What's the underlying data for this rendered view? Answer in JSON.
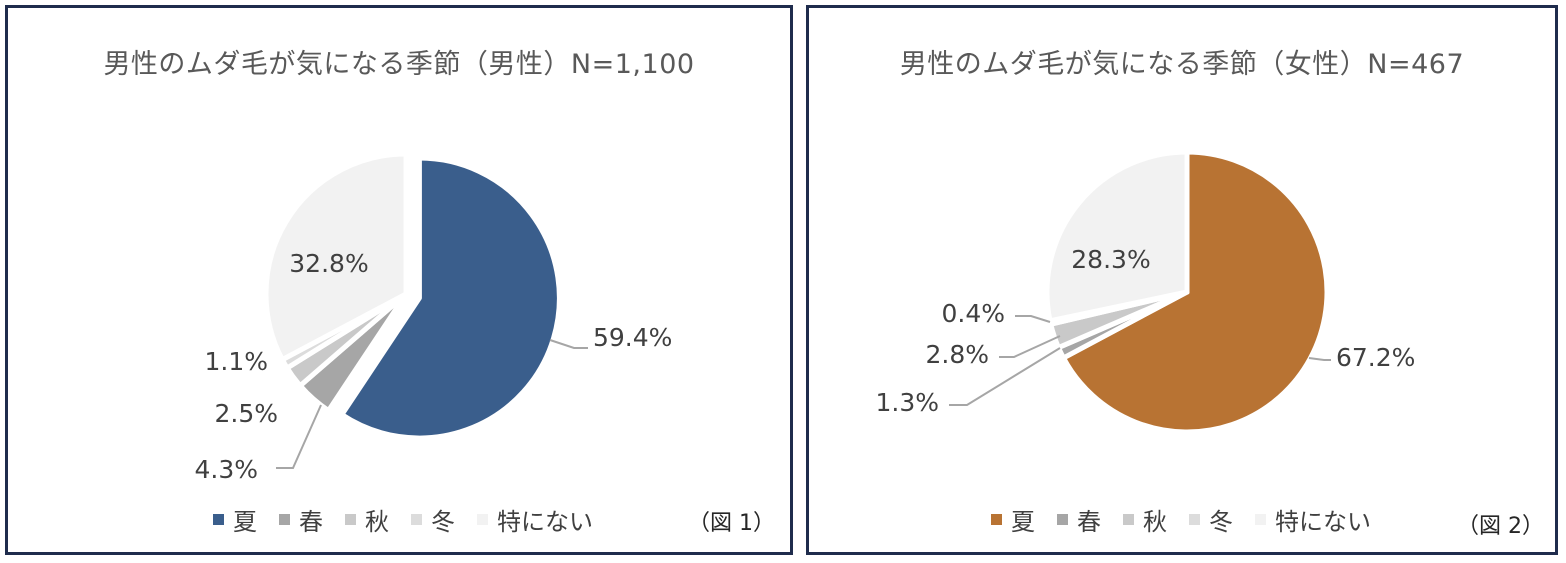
{
  "charts": [
    {
      "title": "男性のムダ毛が気になる季節（男性）N=1,100",
      "figure_note": "（図 1）",
      "legend": [
        {
          "label": "夏",
          "color": "#3a5e8c"
        },
        {
          "label": "春",
          "color": "#a6a6a6"
        },
        {
          "label": "秋",
          "color": "#c9c9c9"
        },
        {
          "label": "冬",
          "color": "#dcdcdc"
        },
        {
          "label": "特にない",
          "color": "#f2f2f2"
        }
      ],
      "labels": [
        "59.4%",
        "4.3%",
        "2.5%",
        "1.1%",
        "32.8%"
      ]
    },
    {
      "title": "男性のムダ毛が気になる季節（女性）N=467",
      "figure_note": "（図 2）",
      "legend": [
        {
          "label": "夏",
          "color": "#b87333"
        },
        {
          "label": "春",
          "color": "#a6a6a6"
        },
        {
          "label": "秋",
          "color": "#c9c9c9"
        },
        {
          "label": "冬",
          "color": "#dcdcdc"
        },
        {
          "label": "特にない",
          "color": "#f2f2f2"
        }
      ],
      "labels": [
        "67.2%",
        "1.3%",
        "2.8%",
        "0.4%",
        "28.3%"
      ]
    }
  ],
  "chart_data": [
    {
      "type": "pie",
      "title": "男性のムダ毛が気になる季節（男性）N=1,100",
      "categories": [
        "夏",
        "春",
        "秋",
        "冬",
        "特にない"
      ],
      "values": [
        59.4,
        4.3,
        2.5,
        1.1,
        32.8
      ],
      "unit": "%",
      "legend_position": "bottom",
      "exploded": "夏"
    },
    {
      "type": "pie",
      "title": "男性のムダ毛が気になる季節（女性）N=467",
      "categories": [
        "夏",
        "春",
        "秋",
        "冬",
        "特にない"
      ],
      "values": [
        67.2,
        1.3,
        2.8,
        0.4,
        28.3
      ],
      "unit": "%",
      "legend_position": "bottom",
      "exploded": "夏"
    }
  ]
}
